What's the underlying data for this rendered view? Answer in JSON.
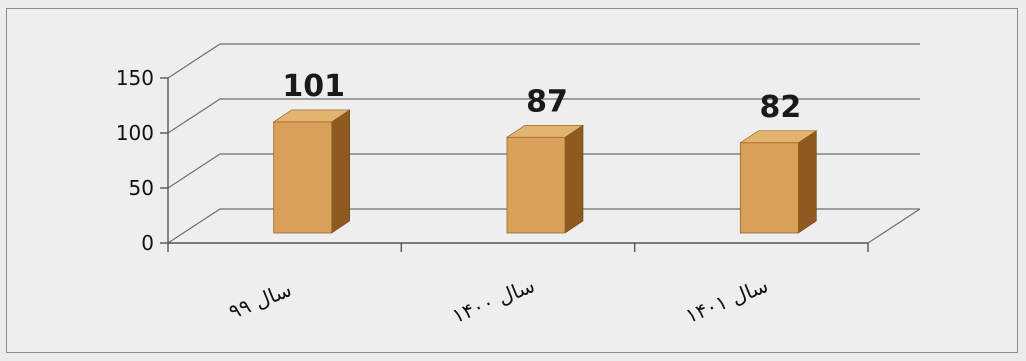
{
  "chart_data": {
    "type": "bar",
    "categories": [
      "سال ۹۹",
      "سال ۱۴۰۰",
      "سال ۱۴۰۱"
    ],
    "values": [
      101,
      87,
      82
    ],
    "data_labels": [
      "101",
      "87",
      "82"
    ],
    "y_ticks": [
      "0",
      "50",
      "100",
      "150"
    ],
    "ylim": [
      0,
      150
    ],
    "title": "",
    "xlabel": "",
    "ylabel": "",
    "grid": true,
    "style": "3d-column",
    "bar_color": "#d9a05a",
    "bar_side_color": "#8e5a1f",
    "bar_top_color": "#e3b46f"
  }
}
